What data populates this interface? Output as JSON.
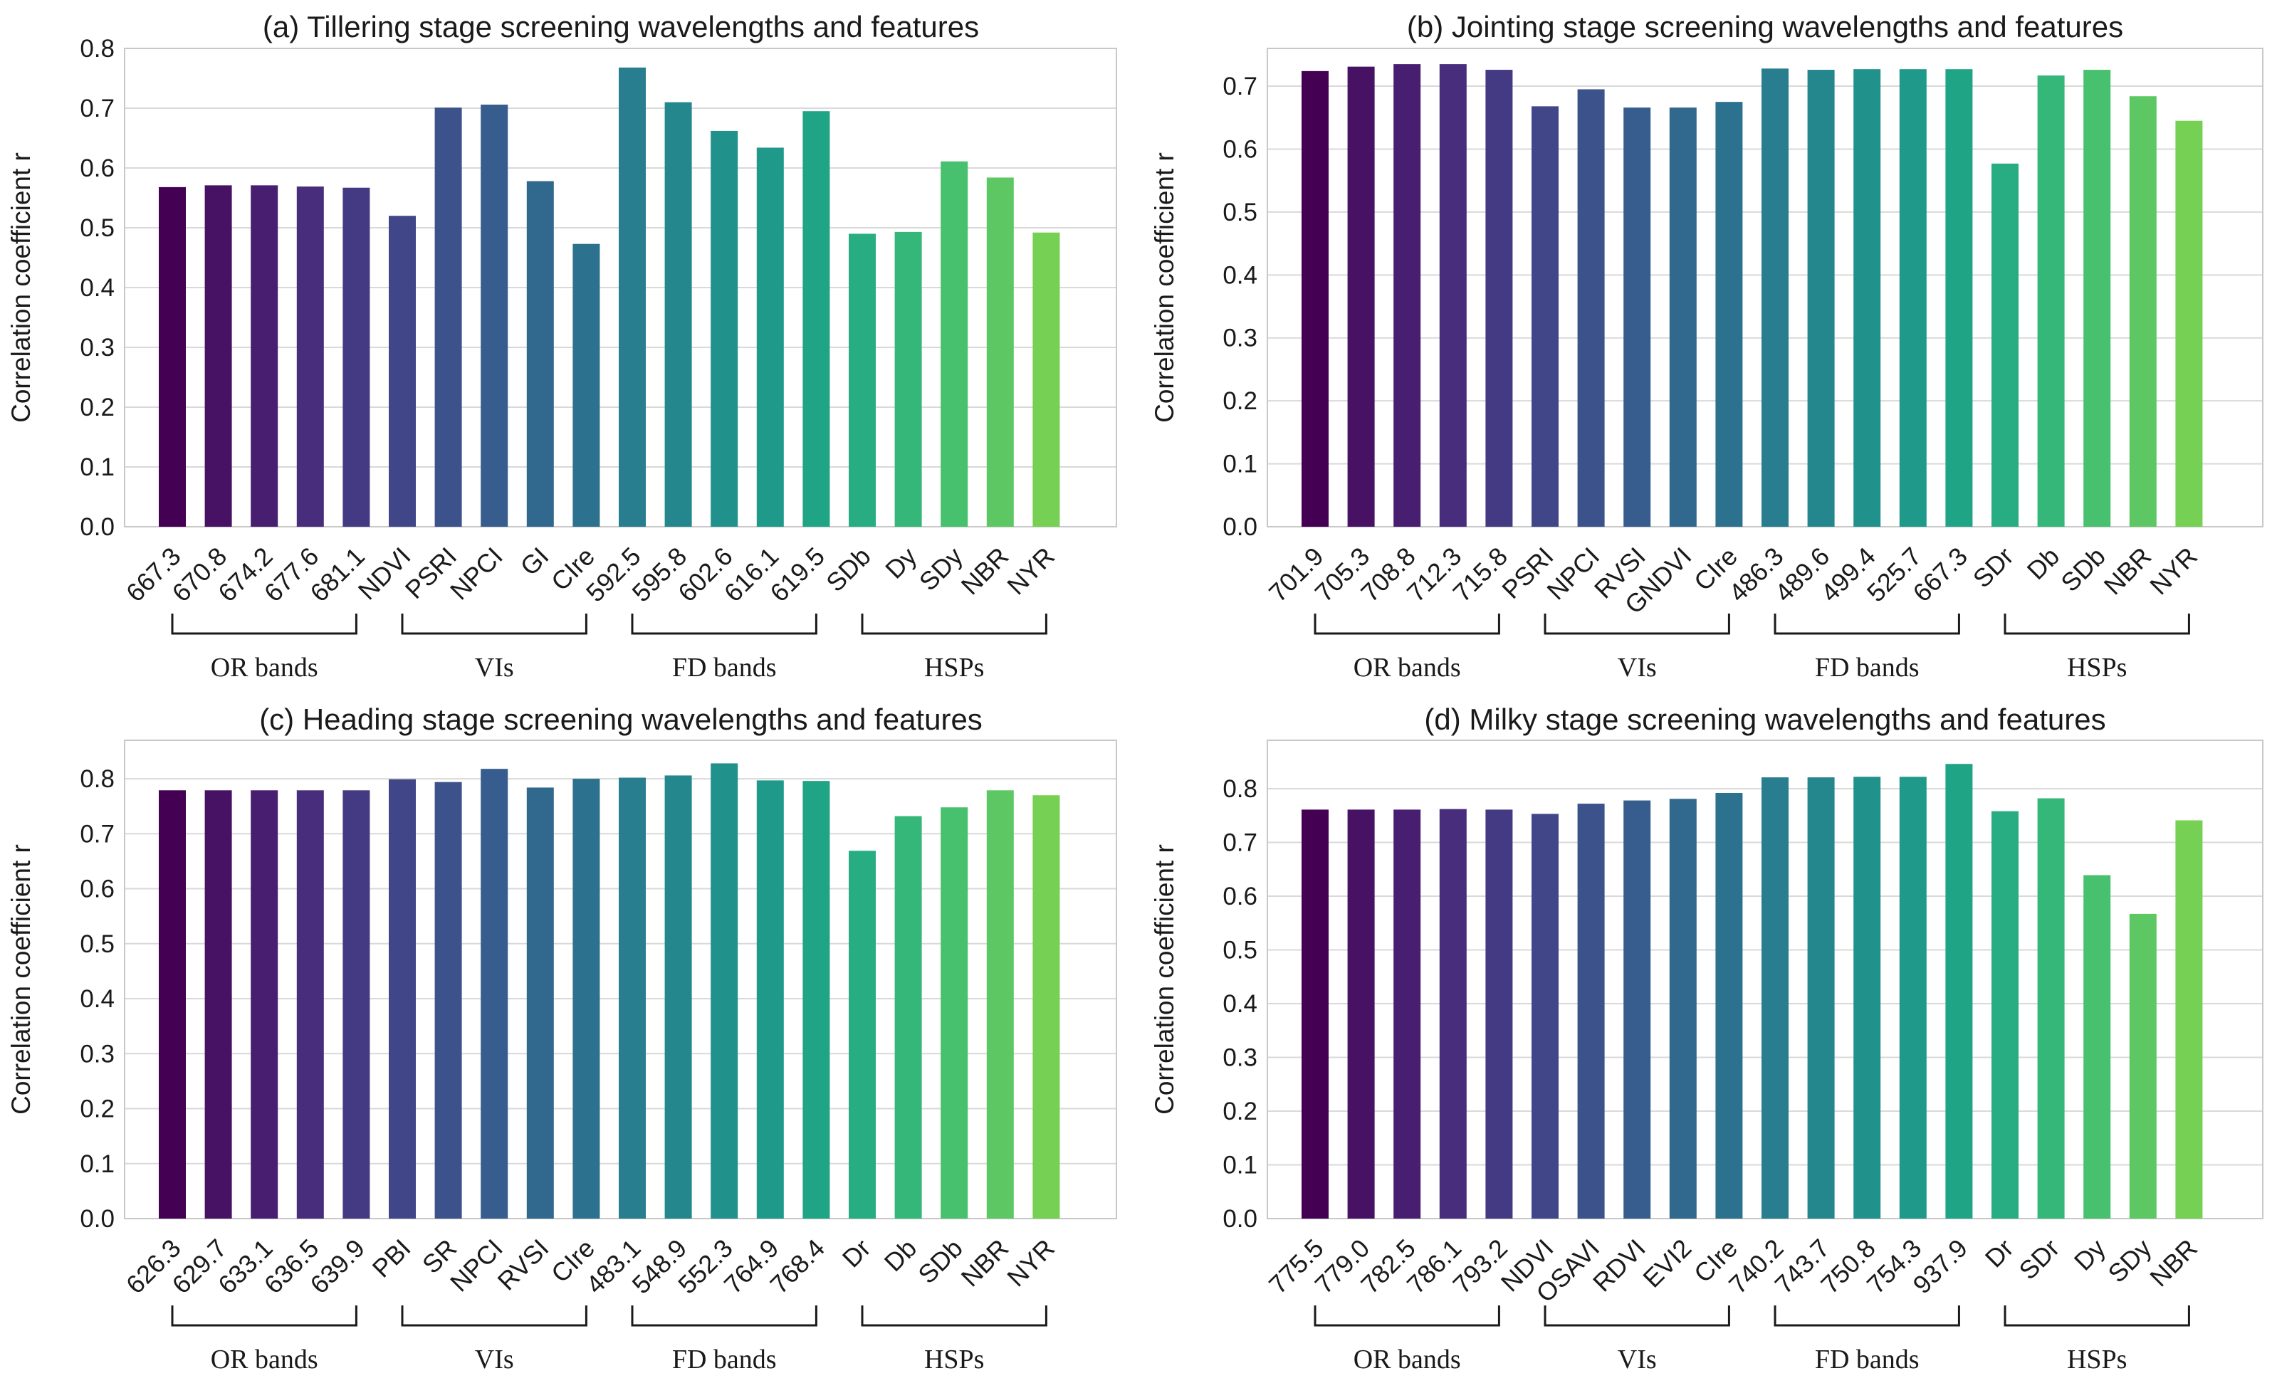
{
  "chart_data": [
    {
      "type": "bar",
      "title": "(a) Tillering stage screening wavelengths and features",
      "ylabel": "Correlation coefficient r",
      "xlabel": "",
      "ylim": [
        0,
        0.8
      ],
      "yticks": [
        "0.0",
        "0.1",
        "0.2",
        "0.3",
        "0.4",
        "0.5",
        "0.6",
        "0.7",
        "0.8"
      ],
      "grid": true,
      "categories": [
        "667.3",
        "670.8",
        "674.2",
        "677.6",
        "681.1",
        "NDVI",
        "PSRI",
        "NPCI",
        "GI",
        "CIre",
        "592.5",
        "595.8",
        "602.6",
        "616.1",
        "619.5",
        "SDb",
        "Dy",
        "SDy",
        "NBR",
        "NYR"
      ],
      "values": [
        0.568,
        0.571,
        0.571,
        0.569,
        0.567,
        0.52,
        0.701,
        0.706,
        0.578,
        0.473,
        0.768,
        0.71,
        0.662,
        0.634,
        0.695,
        0.49,
        0.493,
        0.611,
        0.584,
        0.492
      ],
      "groups": [
        {
          "label": "OR bands",
          "count": 5
        },
        {
          "label": "VIs",
          "count": 5
        },
        {
          "label": "FD bands",
          "count": 5
        },
        {
          "label": "HSPs",
          "count": 5
        }
      ]
    },
    {
      "type": "bar",
      "title": "(b) Jointing stage screening wavelengths and features",
      "ylabel": "Correlation coefficient r",
      "xlabel": "",
      "ylim": [
        0,
        0.76
      ],
      "yticks": [
        "0.0",
        "0.1",
        "0.2",
        "0.3",
        "0.4",
        "0.5",
        "0.6",
        "0.7"
      ],
      "grid": true,
      "categories": [
        "701.9",
        "705.3",
        "708.8",
        "712.3",
        "715.8",
        "PSRI",
        "NPCI",
        "RVSI",
        "GNDVI",
        "CIre",
        "486.3",
        "489.6",
        "499.4",
        "525.7",
        "667.3",
        "SDr",
        "Db",
        "SDb",
        "NBR",
        "NYR"
      ],
      "values": [
        0.724,
        0.731,
        0.735,
        0.735,
        0.726,
        0.668,
        0.695,
        0.666,
        0.666,
        0.675,
        0.728,
        0.726,
        0.727,
        0.727,
        0.727,
        0.577,
        0.717,
        0.726,
        0.684,
        0.645
      ],
      "groups": [
        {
          "label": "OR bands",
          "count": 5
        },
        {
          "label": "VIs",
          "count": 5
        },
        {
          "label": "FD bands",
          "count": 5
        },
        {
          "label": "HSPs",
          "count": 5
        }
      ]
    },
    {
      "type": "bar",
      "title": "(c) Heading stage screening wavelengths and features",
      "ylabel": "Correlation coefficient r",
      "xlabel": "",
      "ylim": [
        0,
        0.87
      ],
      "yticks": [
        "0.0",
        "0.1",
        "0.2",
        "0.3",
        "0.4",
        "0.5",
        "0.6",
        "0.7",
        "0.8"
      ],
      "grid": true,
      "categories": [
        "626.3",
        "629.7",
        "633.1",
        "636.5",
        "639.9",
        "PBI",
        "SR",
        "NPCI",
        "RVSI",
        "CIre",
        "483.1",
        "548.9",
        "552.3",
        "764.9",
        "768.4",
        "Dr",
        "Db",
        "SDb",
        "NBR",
        "NYR"
      ],
      "values": [
        0.779,
        0.779,
        0.779,
        0.779,
        0.779,
        0.799,
        0.794,
        0.818,
        0.784,
        0.8,
        0.802,
        0.806,
        0.828,
        0.797,
        0.796,
        0.669,
        0.732,
        0.748,
        0.779,
        0.77
      ],
      "groups": [
        {
          "label": "OR bands",
          "count": 5
        },
        {
          "label": "VIs",
          "count": 5
        },
        {
          "label": "FD bands",
          "count": 5
        },
        {
          "label": "HSPs",
          "count": 5
        }
      ]
    },
    {
      "type": "bar",
      "title": "(d) Milky stage screening wavelengths and features",
      "ylabel": "Correlation coefficient r",
      "xlabel": "",
      "ylim": [
        0,
        0.89
      ],
      "yticks": [
        "0.0",
        "0.1",
        "0.2",
        "0.3",
        "0.4",
        "0.5",
        "0.6",
        "0.7",
        "0.8"
      ],
      "grid": true,
      "categories": [
        "775.5",
        "779.0",
        "782.5",
        "786.1",
        "793.2",
        "NDVI",
        "OSAVI",
        "RDVI",
        "EVI2",
        "CIre",
        "740.2",
        "743.7",
        "750.8",
        "754.3",
        "937.9",
        "Dr",
        "SDr",
        "Dy",
        "SDy",
        "NBR"
      ],
      "values": [
        0.761,
        0.761,
        0.761,
        0.762,
        0.761,
        0.753,
        0.772,
        0.778,
        0.781,
        0.792,
        0.821,
        0.821,
        0.822,
        0.822,
        0.846,
        0.758,
        0.782,
        0.639,
        0.567,
        0.741
      ],
      "groups": [
        {
          "label": "OR bands",
          "count": 5
        },
        {
          "label": "VIs",
          "count": 5
        },
        {
          "label": "FD bands",
          "count": 5
        },
        {
          "label": "HSPs",
          "count": 5
        }
      ]
    }
  ],
  "colors": [
    "#440154",
    "#471164",
    "#481f70",
    "#472d7b",
    "#443a83",
    "#404688",
    "#3b528b",
    "#365d8d",
    "#31688e",
    "#2c728e",
    "#287d8e",
    "#24878e",
    "#21918c",
    "#1f9a8a",
    "#20a486",
    "#27ad81",
    "#35b779",
    "#47c16e",
    "#5dc863",
    "#75d054"
  ],
  "colors_tail": [
    "#8fd744",
    "#aadc32",
    "#c5e021",
    "#dde318"
  ]
}
